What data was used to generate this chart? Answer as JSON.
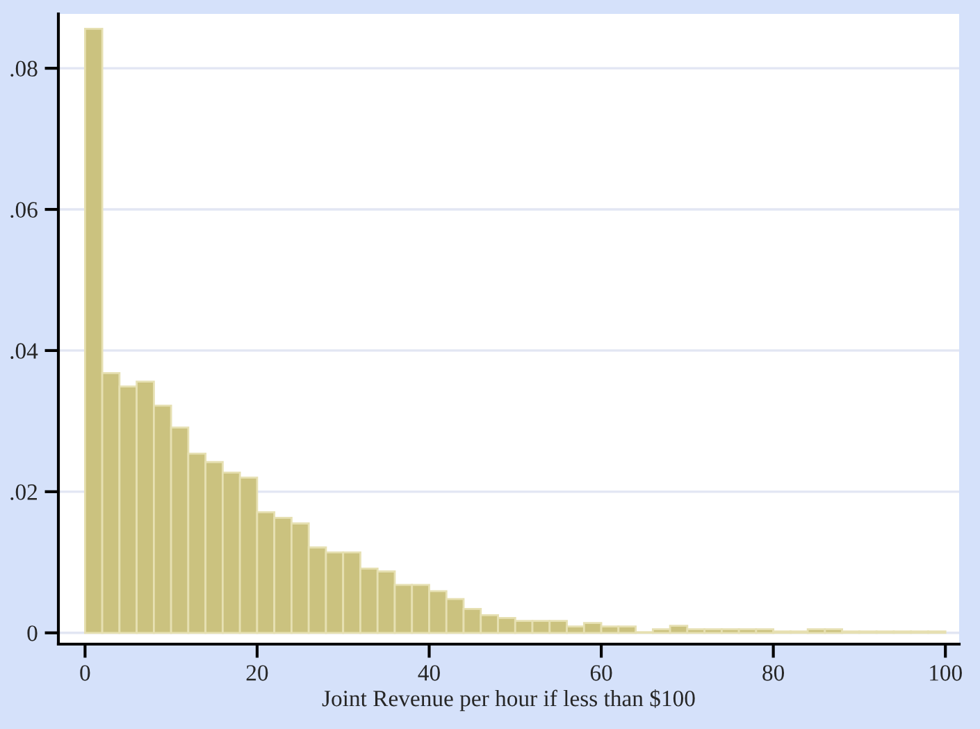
{
  "chart_data": {
    "type": "histogram",
    "xlabel": "Joint Revenue per hour if less than $100",
    "bins": [
      0,
      2,
      4,
      6,
      8,
      10,
      12,
      14,
      16,
      18,
      20,
      22,
      24,
      26,
      28,
      30,
      32,
      34,
      36,
      38,
      40,
      42,
      44,
      46,
      48,
      50,
      52,
      54,
      56,
      58,
      60,
      62,
      64,
      66,
      68,
      70,
      72,
      74,
      76,
      78,
      80,
      82,
      84,
      86,
      88,
      90,
      92,
      94,
      96,
      98,
      100
    ],
    "values": [
      0.0856,
      0.0368,
      0.0349,
      0.0356,
      0.0322,
      0.0291,
      0.0254,
      0.0242,
      0.0227,
      0.022,
      0.0171,
      0.0163,
      0.0155,
      0.0121,
      0.0114,
      0.0114,
      0.0091,
      0.0087,
      0.0068,
      0.0068,
      0.0059,
      0.0048,
      0.0034,
      0.0025,
      0.0021,
      0.0017,
      0.0017,
      0.0017,
      0.0009,
      0.0014,
      0.0009,
      0.0009,
      0.0001,
      0.0005,
      0.001,
      0.0005,
      0.0005,
      0.0005,
      0.0005,
      0.0005,
      0.0002,
      0.0002,
      0.0005,
      0.0005,
      0.0002,
      0.0002,
      0.0002,
      0.0002,
      0.0002,
      0.0002
    ],
    "color": "#cbc27f",
    "xlim": [
      -3.1,
      101.6
    ],
    "ylim": [
      -0.0016,
      0.0877
    ],
    "xticks": [
      0,
      20,
      40,
      60,
      80,
      100
    ],
    "yticks": [
      {
        "value": 0,
        "label": "0"
      },
      {
        "value": 0.02,
        "label": ".02"
      },
      {
        "value": 0.04,
        "label": ".04"
      },
      {
        "value": 0.06,
        "label": ".06"
      },
      {
        "value": 0.08,
        "label": ".08"
      }
    ],
    "grid": "y"
  }
}
